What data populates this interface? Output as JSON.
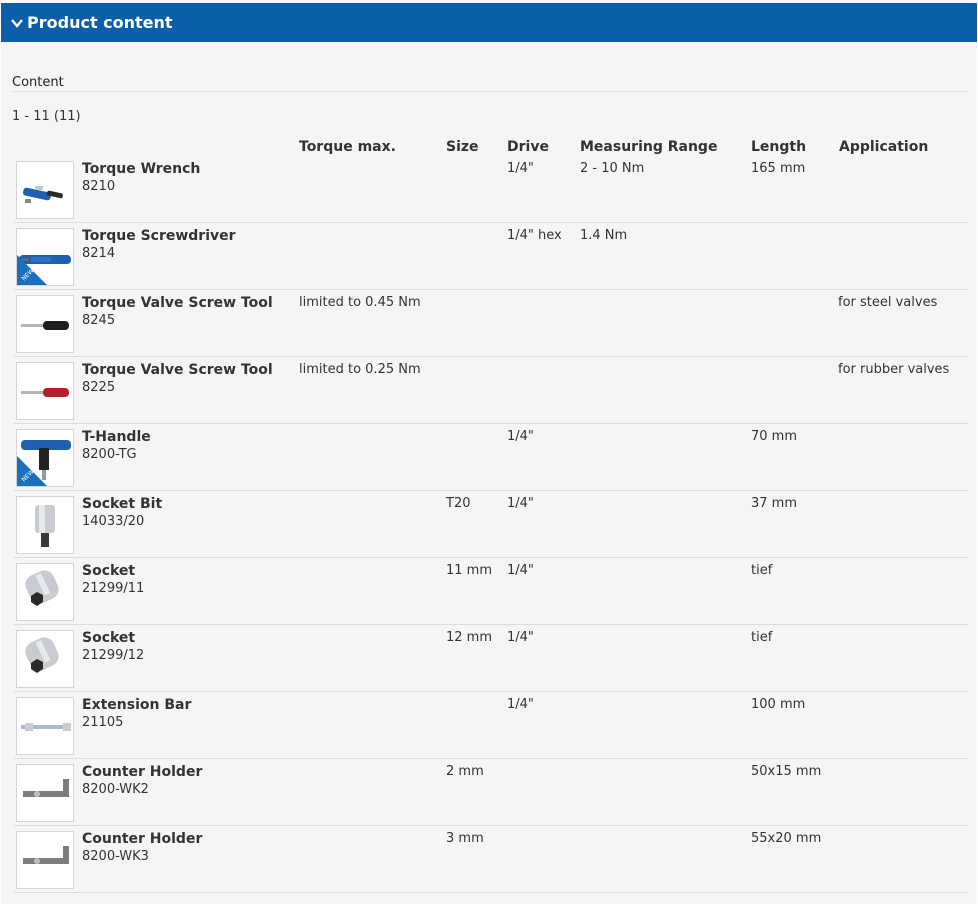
{
  "header": {
    "title": "Product content"
  },
  "section": {
    "label": "Content",
    "range": "1 - 11 (11)"
  },
  "columns": {
    "torque": "Torque max.",
    "size": "Size",
    "drive": "Drive",
    "range": "Measuring Range",
    "length": "Length",
    "application": "Application"
  },
  "badge_text": "NEW",
  "colors": {
    "header_bg": "#0a5fa8",
    "accent_blue": "#1f5fb0",
    "new_badge": "#1a6fbf"
  },
  "products": [
    {
      "name": "Torque Wrench",
      "number": "8210",
      "torque": "",
      "size": "",
      "drive": "1/4\"",
      "range": "2 - 10 Nm",
      "length": "165 mm",
      "application": "",
      "icon": "torque-wrench-icon",
      "is_new": false
    },
    {
      "name": "Torque Screwdriver",
      "number": "8214",
      "torque": "",
      "size": "",
      "drive": "1/4\" hex",
      "range": "1.4 Nm",
      "length": "",
      "application": "",
      "icon": "torque-screwdriver-icon",
      "is_new": true
    },
    {
      "name": "Torque Valve Screw Tool",
      "number": "8245",
      "torque": "limited to 0.45 Nm",
      "size": "",
      "drive": "",
      "range": "",
      "length": "",
      "application": "for steel valves",
      "icon": "valve-tool-black-icon",
      "is_new": false
    },
    {
      "name": "Torque Valve Screw Tool",
      "number": "8225",
      "torque": "limited to 0.25 Nm",
      "size": "",
      "drive": "",
      "range": "",
      "length": "",
      "application": "for rubber valves",
      "icon": "valve-tool-red-icon",
      "is_new": false
    },
    {
      "name": "T-Handle",
      "number": "8200-TG",
      "torque": "",
      "size": "",
      "drive": "1/4\"",
      "range": "",
      "length": "70 mm",
      "application": "",
      "icon": "t-handle-icon",
      "is_new": true
    },
    {
      "name": "Socket Bit",
      "number": "14033/20",
      "torque": "",
      "size": "T20",
      "drive": "1/4\"",
      "range": "",
      "length": "37 mm",
      "application": "",
      "icon": "socket-bit-icon",
      "is_new": false
    },
    {
      "name": "Socket",
      "number": "21299/11",
      "torque": "",
      "size": "11 mm",
      "drive": "1/4\"",
      "range": "",
      "length": "tief",
      "application": "",
      "icon": "socket-icon",
      "is_new": false
    },
    {
      "name": "Socket",
      "number": "21299/12",
      "torque": "",
      "size": "12 mm",
      "drive": "1/4\"",
      "range": "",
      "length": "tief",
      "application": "",
      "icon": "socket-icon",
      "is_new": false
    },
    {
      "name": "Extension Bar",
      "number": "21105",
      "torque": "",
      "size": "",
      "drive": "1/4\"",
      "range": "",
      "length": "100 mm",
      "application": "",
      "icon": "extension-bar-icon",
      "is_new": false
    },
    {
      "name": "Counter Holder",
      "number": "8200-WK2",
      "torque": "",
      "size": "2 mm",
      "drive": "",
      "range": "",
      "length": "50x15 mm",
      "application": "",
      "icon": "counter-holder-icon",
      "is_new": false
    },
    {
      "name": "Counter Holder",
      "number": "8200-WK3",
      "torque": "",
      "size": "3 mm",
      "drive": "",
      "range": "",
      "length": "55x20 mm",
      "application": "",
      "icon": "counter-holder-icon",
      "is_new": false
    }
  ]
}
